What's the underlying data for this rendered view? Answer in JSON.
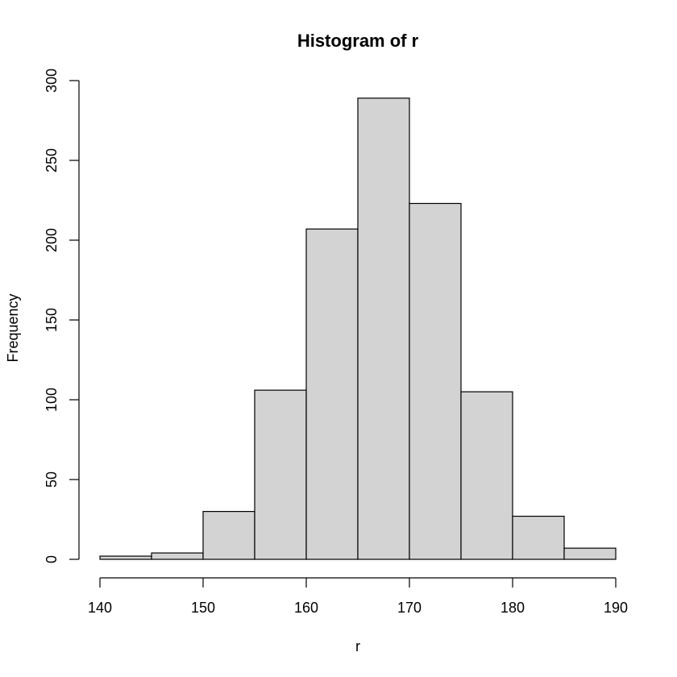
{
  "chart_data": {
    "type": "bar",
    "title": "Histogram of r",
    "xlabel": "r",
    "ylabel": "Frequency",
    "bin_edges": [
      140,
      145,
      150,
      155,
      160,
      165,
      170,
      175,
      180,
      185,
      190
    ],
    "values": [
      2,
      4,
      30,
      106,
      207,
      289,
      223,
      105,
      27,
      7
    ],
    "xlim": [
      140,
      190
    ],
    "ylim": [
      0,
      300
    ],
    "x_ticks": [
      "140",
      "150",
      "160",
      "170",
      "180",
      "190"
    ],
    "y_ticks": [
      "0",
      "50",
      "100",
      "150",
      "200",
      "250",
      "300"
    ],
    "grid": false,
    "bar_color": "#d3d3d3",
    "edge_color": "#000000"
  }
}
